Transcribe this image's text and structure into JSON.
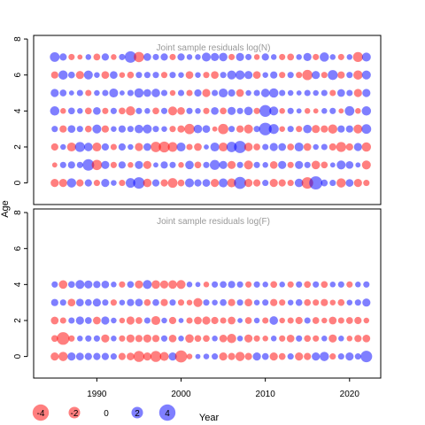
{
  "figure": {
    "ylabel": "Age",
    "xlabel": "Year",
    "colors": {
      "positive": "#0000ff",
      "negative": "#ff0000",
      "opacity": 0.5,
      "axis": "#000000",
      "title": "#999999"
    }
  },
  "legend": {
    "placement": "bottom-left",
    "labels": [
      "-4",
      "-2",
      "0",
      "2",
      "4"
    ],
    "values": [
      -4,
      -2,
      0,
      2,
      4
    ]
  },
  "chart_data": [
    {
      "type": "scatter",
      "title": "Joint sample residuals log(N)",
      "xlabel": "Year",
      "ylabel": "Age",
      "xlim": [
        1982.5,
        2023.7
      ],
      "ylim": [
        -1.2,
        8.2
      ],
      "xticks": [
        1990,
        2000,
        2010,
        2020
      ],
      "yticks": [
        0,
        2,
        4,
        6,
        8
      ],
      "years": [
        1985,
        1986,
        1987,
        1988,
        1989,
        1990,
        1991,
        1992,
        1993,
        1994,
        1995,
        1996,
        1997,
        1998,
        1999,
        2000,
        2001,
        2002,
        2003,
        2004,
        2005,
        2006,
        2007,
        2008,
        2009,
        2010,
        2011,
        2012,
        2013,
        2014,
        2015,
        2016,
        2017,
        2018,
        2019,
        2020,
        2021,
        2022
      ],
      "ages": [
        0,
        1,
        2,
        3,
        4,
        5,
        6,
        7
      ],
      "residuals": [
        [
          -1.0,
          -1.0,
          1.3,
          -0.8,
          0.8,
          -0.6,
          1.0,
          0.5,
          -0.6,
          1.4,
          2.0,
          -1.1,
          0.8,
          -0.8,
          -1.4,
          -0.7,
          1.2,
          0.8,
          0.9,
          -1.0,
          1.2,
          -1.2,
          2.2,
          -1.0,
          -0.8,
          0.6,
          -1.0,
          -0.8,
          -0.6,
          1.1,
          -2.0,
          2.6,
          0.7,
          0.6,
          -1.3,
          0.9,
          -1.0,
          -0.6
        ],
        [
          -0.4,
          0.6,
          0.8,
          0.6,
          2.0,
          -1.6,
          1.0,
          -0.6,
          0.8,
          -0.5,
          1.0,
          -1.0,
          0.4,
          0.8,
          0.6,
          -0.5,
          1.1,
          -0.7,
          0.6,
          1.5,
          1.0,
          -1.0,
          0.6,
          -1.2,
          0.6,
          0.5,
          -0.9,
          1.0,
          -0.6,
          1.0,
          0.6,
          -1.1,
          -0.7,
          0.4,
          1.2,
          0.9,
          0.4,
          -1.2
        ],
        [
          -0.8,
          0.5,
          -1.2,
          1.5,
          1.1,
          -1.2,
          0.8,
          -0.6,
          0.8,
          0.5,
          -1.0,
          0.9,
          -1.6,
          -1.8,
          -1.4,
          1.2,
          -0.6,
          -0.9,
          0.4,
          1.2,
          -1.2,
          1.6,
          2.2,
          -1.1,
          -0.7,
          0.6,
          1.0,
          0.9,
          -0.7,
          1.2,
          -0.9,
          0.5,
          0.6,
          -0.8,
          -1.5,
          -0.8,
          1.0,
          -1.3
        ],
        [
          0.6,
          -0.8,
          0.9,
          0.6,
          -0.7,
          1.2,
          -0.8,
          0.5,
          0.8,
          0.6,
          1.1,
          1.2,
          0.6,
          0.5,
          -0.6,
          -0.8,
          -1.6,
          1.1,
          0.9,
          -0.4,
          -1.6,
          0.6,
          -0.8,
          -1.2,
          0.6,
          2.4,
          1.5,
          -0.5,
          0.6,
          -0.6,
          1.1,
          -1.0,
          -0.8,
          -1.3,
          0.8,
          0.8,
          -1.2,
          1.4
        ],
        [
          1.3,
          -0.5,
          0.7,
          0.5,
          -0.7,
          0.9,
          -0.6,
          0.6,
          -0.7,
          -1.3,
          0.6,
          0.5,
          -0.7,
          0.6,
          -1.2,
          -0.9,
          0.6,
          0.5,
          -0.6,
          0.9,
          -0.7,
          1.0,
          0.6,
          1.1,
          -0.6,
          2.1,
          1.2,
          -0.5,
          0.6,
          0.4,
          -0.5,
          -0.4,
          0.5,
          0.6,
          -0.4,
          1.4,
          -0.5,
          1.3
        ],
        [
          1.0,
          0.7,
          0.4,
          0.6,
          -0.6,
          0.5,
          0.6,
          1.2,
          0.4,
          0.6,
          1.3,
          0.9,
          1.1,
          0.6,
          -0.5,
          0.6,
          -0.6,
          0.8,
          -1.0,
          0.6,
          1.2,
          0.8,
          -0.9,
          0.5,
          0.6,
          1.1,
          1.3,
          0.6,
          0.5,
          0.4,
          0.6,
          0.5,
          0.6,
          -0.6,
          0.9,
          0.6,
          -1.0,
          1.0
        ],
        [
          -0.8,
          1.3,
          0.7,
          -1.0,
          1.2,
          0.5,
          -0.9,
          0.9,
          -0.5,
          -0.7,
          0.6,
          0.6,
          0.6,
          -0.6,
          0.6,
          0.5,
          -0.9,
          0.5,
          -0.6,
          -0.9,
          0.6,
          1.2,
          1.3,
          1.0,
          -0.9,
          0.5,
          0.8,
          -0.6,
          0.6,
          -0.6,
          -1.6,
          1.0,
          -0.6,
          1.5,
          -0.8,
          0.6,
          -1.3,
          1.2
        ],
        [
          1.4,
          0.8,
          -0.6,
          -0.4,
          0.5,
          -0.7,
          0.8,
          -0.5,
          0.6,
          2.0,
          -1.6,
          0.9,
          0.6,
          0.8,
          -0.6,
          0.8,
          0.5,
          0.5,
          1.2,
          1.0,
          1.1,
          -0.6,
          1.0,
          0.6,
          -0.5,
          0.8,
          0.5,
          -0.6,
          -0.7,
          0.5,
          1.0,
          -0.6,
          1.3,
          0.5,
          -0.6,
          0.5,
          -1.5,
          1.2
        ]
      ]
    },
    {
      "type": "scatter",
      "title": "Joint sample residuals log(F)",
      "xlabel": "Year",
      "ylabel": "Age",
      "xlim": [
        1982.5,
        2023.7
      ],
      "ylim": [
        -1.2,
        8.2
      ],
      "xticks": [
        1990,
        2000,
        2010,
        2020
      ],
      "yticks": [
        0,
        2,
        4,
        6,
        8
      ],
      "years": [
        1985,
        1986,
        1987,
        1988,
        1989,
        1990,
        1991,
        1992,
        1993,
        1994,
        1995,
        1996,
        1997,
        1998,
        1999,
        2000,
        2001,
        2002,
        2003,
        2004,
        2005,
        2006,
        2007,
        2008,
        2009,
        2010,
        2011,
        2012,
        2013,
        2014,
        2015,
        2016,
        2017,
        2018,
        2019,
        2020,
        2021,
        2022
      ],
      "ages": [
        0,
        1,
        2,
        3,
        4
      ],
      "residuals": [
        [
          -1.0,
          -1.3,
          1.0,
          0.9,
          0.8,
          0.8,
          0.8,
          0.6,
          -0.8,
          -0.9,
          -1.8,
          -1.0,
          -1.8,
          -1.2,
          1.0,
          -2.2,
          -0.5,
          0.4,
          0.5,
          0.6,
          -1.0,
          -0.8,
          -1.3,
          -0.8,
          1.0,
          0.7,
          -1.0,
          -0.7,
          0.6,
          -1.0,
          -0.8,
          1.0,
          1.3,
          -0.6,
          0.6,
          1.0,
          0.6,
          2.0
        ],
        [
          -0.7,
          -2.4,
          -0.6,
          0.5,
          0.6,
          0.6,
          -1.0,
          0.5,
          -0.6,
          -1.0,
          -0.8,
          -1.0,
          -0.8,
          0.6,
          -0.9,
          0.5,
          -1.1,
          -0.7,
          -0.7,
          0.5,
          -0.9,
          -1.3,
          0.5,
          -1.0,
          -0.6,
          -0.5,
          0.5,
          -0.6,
          -0.9,
          0.6,
          -0.7,
          -0.6,
          0.5,
          -1.0,
          0.5,
          -0.5,
          -0.8,
          -0.9
        ],
        [
          -0.9,
          -0.6,
          0.6,
          1.0,
          0.7,
          -0.9,
          1.0,
          0.5,
          -0.5,
          -1.0,
          -0.7,
          0.6,
          -1.2,
          0.5,
          -0.8,
          0.4,
          -0.6,
          -0.9,
          -1.0,
          -0.8,
          -0.6,
          -0.9,
          0.4,
          -0.7,
          0.5,
          -0.6,
          1.1,
          -0.5,
          -0.6,
          -0.8,
          0.6,
          -0.7,
          -0.5,
          -0.9,
          -0.6,
          -0.7,
          -0.8,
          -0.5
        ],
        [
          0.8,
          0.6,
          -0.9,
          0.9,
          0.7,
          1.0,
          0.6,
          -0.6,
          0.5,
          0.8,
          0.9,
          -0.7,
          0.7,
          -0.8,
          0.6,
          -0.6,
          -0.5,
          -1.2,
          0.6,
          0.5,
          0.7,
          -0.8,
          0.6,
          -0.9,
          0.5,
          0.6,
          -0.8,
          -0.6,
          0.5,
          0.7,
          -0.7,
          -0.6,
          -0.8,
          -0.5,
          -0.7,
          0.5,
          0.6,
          1.0
        ],
        [
          0.6,
          -1.1,
          0.7,
          1.2,
          1.0,
          0.8,
          0.9,
          0.5,
          -0.6,
          0.7,
          -1.0,
          1.2,
          -1.1,
          -1.0,
          -1.1,
          -1.2,
          0.5,
          0.4,
          -0.5,
          0.6,
          0.7,
          0.8,
          0.6,
          -0.6,
          0.6,
          0.5,
          -0.7,
          0.5,
          -0.6,
          0.6,
          -0.7,
          0.6,
          -0.7,
          0.5,
          0.6,
          -0.6,
          0.5,
          0.6
        ]
      ]
    }
  ]
}
